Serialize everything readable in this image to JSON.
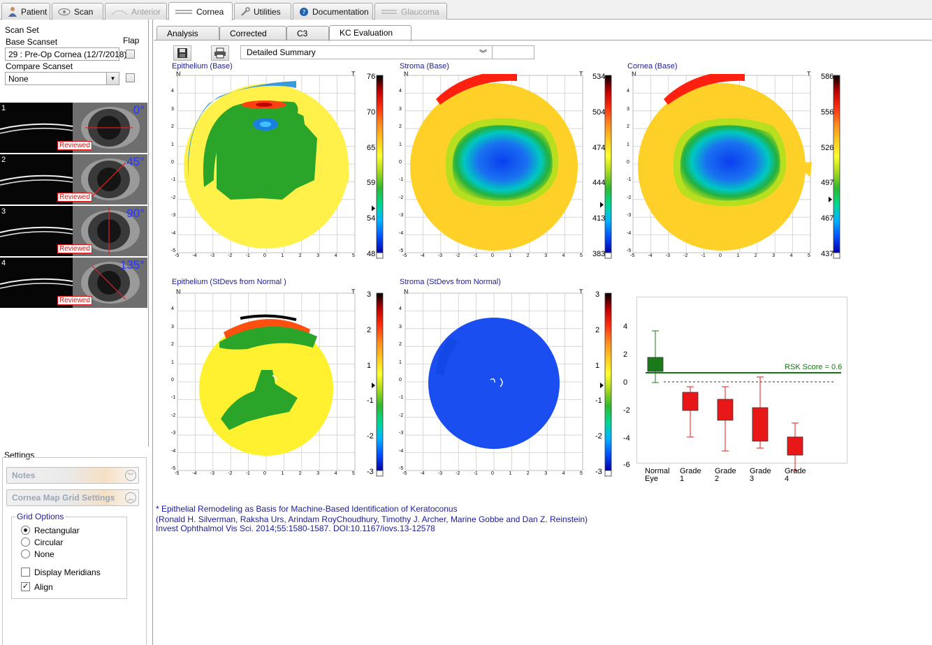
{
  "top_tabs": [
    {
      "label": "Patient",
      "state": "normal"
    },
    {
      "label": "Scan",
      "state": "normal"
    },
    {
      "label": "Anterior",
      "state": "disabled"
    },
    {
      "label": "Cornea",
      "state": "active"
    },
    {
      "label": "Utilities",
      "state": "normal"
    },
    {
      "label": "Documentation",
      "state": "normal"
    },
    {
      "label": "Glaucoma",
      "state": "disabled"
    }
  ],
  "scan_set": {
    "title": "Scan Set",
    "base_label": "Base Scanset",
    "flap_label": "Flap",
    "base_value": "29 : Pre-Op Cornea (12/7/2018)",
    "compare_label": "Compare Scanset",
    "compare_value": "None"
  },
  "scans": [
    {
      "number": "1",
      "angle": "0°",
      "status": "Reviewed"
    },
    {
      "number": "2",
      "angle": "45°",
      "status": "Reviewed"
    },
    {
      "number": "3",
      "angle": "90°",
      "status": "Reviewed"
    },
    {
      "number": "4",
      "angle": "135°",
      "status": "Reviewed"
    }
  ],
  "settings": {
    "title": "Settings",
    "notes_label": "Notes",
    "grid_panel_label": "Cornea Map Grid Settings",
    "grid_options_title": "Grid Options",
    "options": [
      "Rectangular",
      "Circular",
      "None"
    ],
    "selected_option": "Rectangular",
    "display_meridians_label": "Display Meridians",
    "display_meridians_checked": false,
    "align_label": "Align",
    "align_checked": true
  },
  "sub_tabs": [
    {
      "label": "Analysis",
      "active": false
    },
    {
      "label": "Corrected",
      "active": false
    },
    {
      "label": "C3",
      "active": false
    },
    {
      "label": "KC Evaluation",
      "active": true
    }
  ],
  "toolbar": {
    "save_icon": "save-icon",
    "print_icon": "print-icon",
    "summary_value": "Detailed Summary"
  },
  "axis": {
    "orientation_n": "N",
    "orientation_t": "T",
    "y_ticks": [
      "4",
      "3",
      "2",
      "1",
      "0",
      "-1",
      "-2",
      "-3",
      "-4",
      "-5"
    ],
    "x_ticks": [
      "-5",
      "-4",
      "-3",
      "-2",
      "-1",
      "0",
      "1",
      "2",
      "3",
      "4",
      "5"
    ]
  },
  "maps": [
    {
      "id": "epithelium-base",
      "title": "Epithelium (Base)",
      "scale": [
        "76",
        "70",
        "65",
        "59",
        "54",
        "48"
      ],
      "marker_fraction": 0.75
    },
    {
      "id": "stroma-base",
      "title": "Stroma (Base)",
      "scale": [
        "534",
        "504",
        "474",
        "444",
        "413",
        "383"
      ],
      "marker_fraction": 0.73
    },
    {
      "id": "cornea-base",
      "title": "Cornea (Base)",
      "scale": [
        "586",
        "556",
        "526",
        "497",
        "467",
        "437"
      ],
      "marker_fraction": 0.7
    },
    {
      "id": "epithelium-stdev",
      "title": "Epithelium (StDevs from Normal )",
      "scale": [
        "3",
        "2",
        "1",
        "-1",
        "-2",
        "-3"
      ],
      "marker_fraction": 0.52
    },
    {
      "id": "stroma-stdev",
      "title": "Stroma (StDevs from Normal)",
      "scale": [
        "3",
        "2",
        "1",
        "-1",
        "-2",
        "-3"
      ],
      "marker_fraction": 0.52
    }
  ],
  "rsk_chart": {
    "y_ticks": [
      "4",
      "2",
      "0",
      "-2",
      "-4",
      "-6"
    ],
    "rsk_label": "RSK Score = 0.6",
    "categories": [
      "Normal Eye",
      "Grade 1",
      "Grade 2",
      "Grade 3",
      "Grade 4"
    ],
    "colors": {
      "normal": "#1a7a1a",
      "grade": "#e81818",
      "line": "#117711"
    }
  },
  "reference": {
    "line1": "* Epithelial Remodeling as Basis for Machine-Based Identification of Keratoconus",
    "line2": "(Ronald H. Silverman, Raksha Urs, Arindam RoyChoudhury, Timothy J. Archer, Marine Gobbe and Dan Z. Reinstein)",
    "line3": "Invest Ophthalmol Vis Sci. 2014;55:1580-1587. DOI:10.1167/iovs.13-12578"
  }
}
